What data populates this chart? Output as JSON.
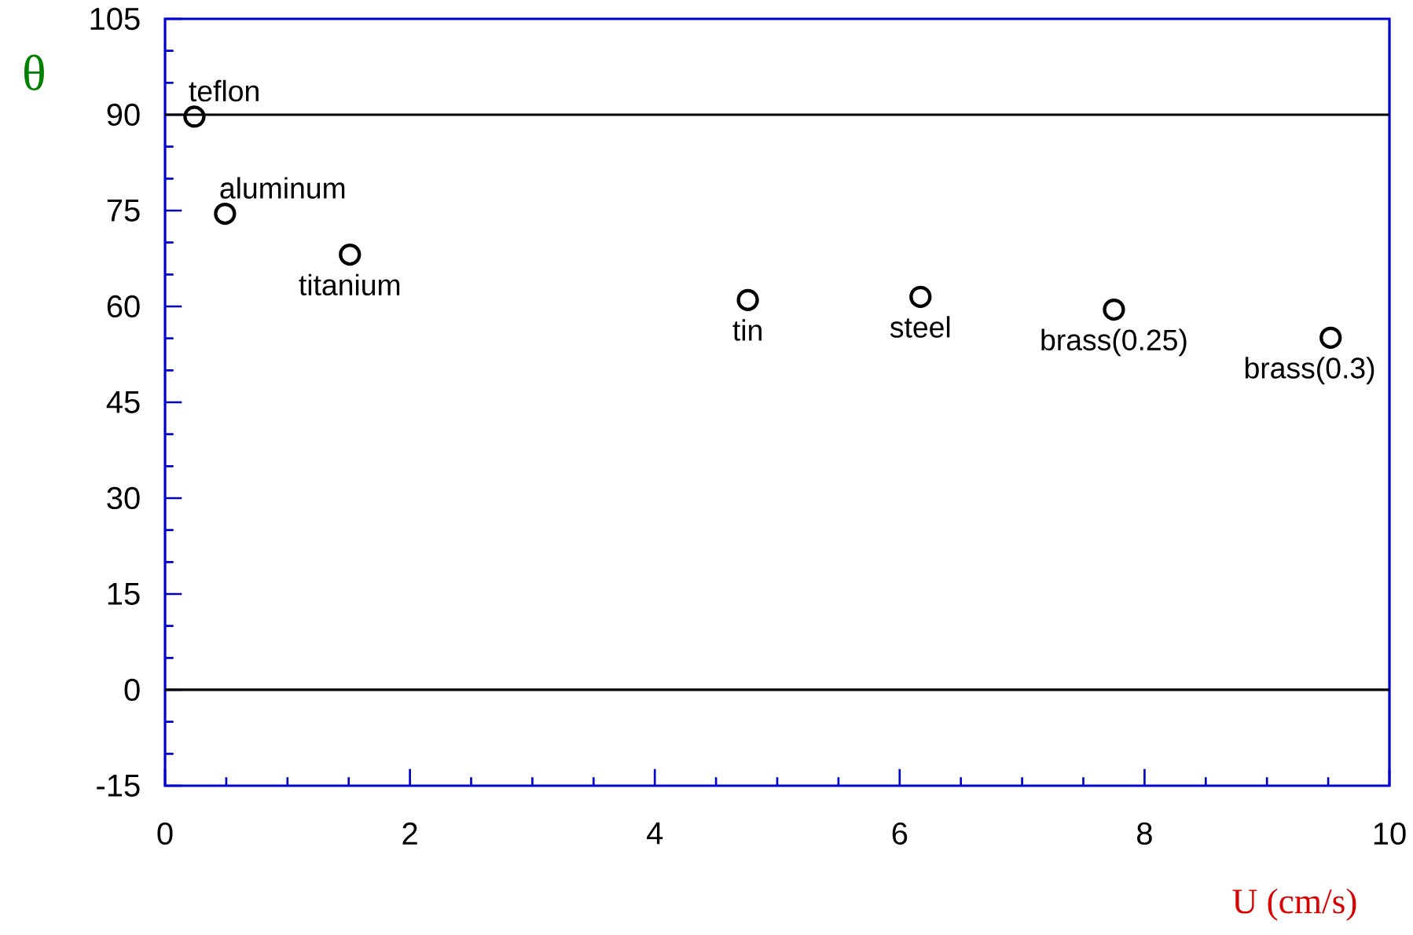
{
  "chart_data": {
    "type": "scatter",
    "xlabel": "U (cm/s)",
    "ylabel": "θ",
    "x": [
      0.24,
      0.49,
      1.51,
      4.76,
      6.17,
      7.75,
      9.52
    ],
    "values": [
      89.7,
      74.5,
      68.1,
      61.0,
      61.5,
      59.5,
      55.1
    ],
    "color": "#000000",
    "marker": "circle",
    "xlim": [
      0,
      10
    ],
    "ylim": [
      -15,
      105
    ],
    "xticks": [
      0,
      2,
      4,
      6,
      8,
      10
    ],
    "yticks": [
      -15,
      0,
      15,
      30,
      45,
      60,
      75,
      90,
      105
    ],
    "ref_lines": [
      {
        "axis": "y",
        "value": 90
      },
      {
        "axis": "y",
        "value": 0
      }
    ],
    "annotations": [
      {
        "text": "teflon",
        "x": 0.24,
        "y": 89.7
      },
      {
        "text": "aluminum",
        "x": 0.49,
        "y": 74.5
      },
      {
        "text": "titanium",
        "x": 1.51,
        "y": 68.1
      },
      {
        "text": "tin",
        "x": 4.76,
        "y": 61.0
      },
      {
        "text": "steel",
        "x": 6.17,
        "y": 61.5
      },
      {
        "text": "brass(0.25)",
        "x": 7.75,
        "y": 59.5
      },
      {
        "text": "brass(0.3)",
        "x": 9.52,
        "y": 55.1
      }
    ]
  }
}
